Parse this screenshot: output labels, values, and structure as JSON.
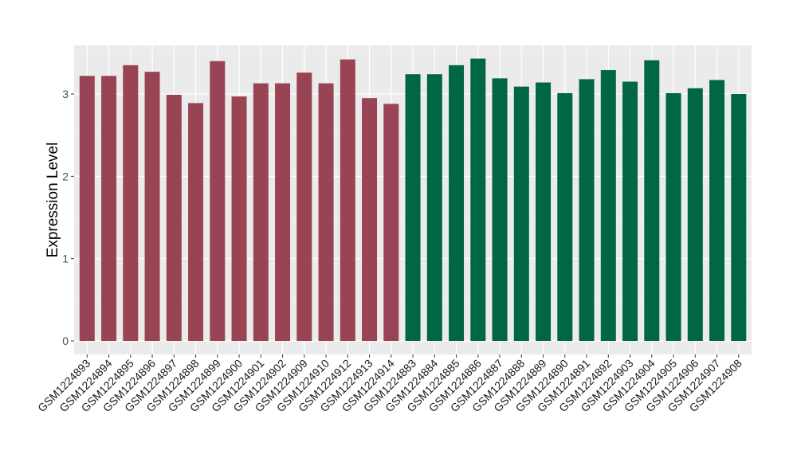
{
  "chart_data": {
    "type": "bar",
    "title": "",
    "xlabel": "",
    "ylabel": "Expression Level",
    "ylim": [
      -0.16,
      3.6
    ],
    "yticks": [
      0,
      1,
      2,
      3
    ],
    "grid": true,
    "categories": [
      "GSM1224893",
      "GSM1224894",
      "GSM1224895",
      "GSM1224896",
      "GSM1224897",
      "GSM1224898",
      "GSM1224899",
      "GSM1224900",
      "GSM1224901",
      "GSM1224902",
      "GSM1224909",
      "GSM1224910",
      "GSM1224912",
      "GSM1224913",
      "GSM1224914",
      "GSM1224883",
      "GSM1224884",
      "GSM1224885",
      "GSM1224886",
      "GSM1224887",
      "GSM1224888",
      "GSM1224889",
      "GSM1224890",
      "GSM1224891",
      "GSM1224892",
      "GSM1224903",
      "GSM1224904",
      "GSM1224905",
      "GSM1224906",
      "GSM1224907",
      "GSM1224908"
    ],
    "values": [
      3.22,
      3.22,
      3.35,
      3.27,
      2.99,
      2.89,
      3.4,
      2.97,
      3.13,
      3.13,
      3.26,
      3.13,
      3.42,
      2.95,
      2.88,
      3.24,
      3.24,
      3.35,
      3.43,
      3.19,
      3.09,
      3.14,
      3.01,
      3.18,
      3.29,
      3.15,
      3.41,
      3.01,
      3.07,
      3.17,
      3.0
    ],
    "group_sizes": [
      15,
      16
    ],
    "colors": [
      "#994455",
      "#006644"
    ],
    "background": "#ebebeb"
  }
}
